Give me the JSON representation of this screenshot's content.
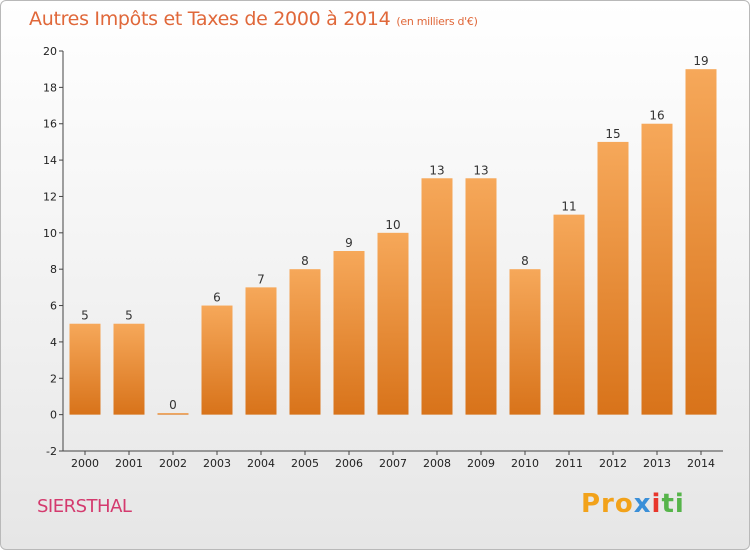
{
  "title": "Autres Impôts et Taxes de 2000 à 2014",
  "subtitle": "(en milliers d'€)",
  "place": "SIERSTHAL",
  "logo": {
    "p1": "Pro",
    "p2": "x",
    "p3": "i",
    "p4": "ti"
  },
  "colors": {
    "bar_top": "#f6a85a",
    "bar_bottom": "#d8731a",
    "title": "#e0683a",
    "place": "#d43a6e"
  },
  "chart_data": {
    "type": "bar",
    "categories": [
      "2000",
      "2001",
      "2002",
      "2003",
      "2004",
      "2005",
      "2006",
      "2007",
      "2008",
      "2009",
      "2010",
      "2011",
      "2012",
      "2013",
      "2014"
    ],
    "values": [
      5,
      5,
      0,
      6,
      7,
      8,
      9,
      10,
      13,
      13,
      8,
      11,
      15,
      16,
      19
    ],
    "title": "Autres Impôts et Taxes de 2000 à 2014",
    "xlabel": "",
    "ylabel": "",
    "ylim": [
      -2,
      20
    ],
    "yticks": [
      -2,
      0,
      2,
      4,
      6,
      8,
      10,
      12,
      14,
      16,
      18,
      20
    ],
    "grid": false
  }
}
